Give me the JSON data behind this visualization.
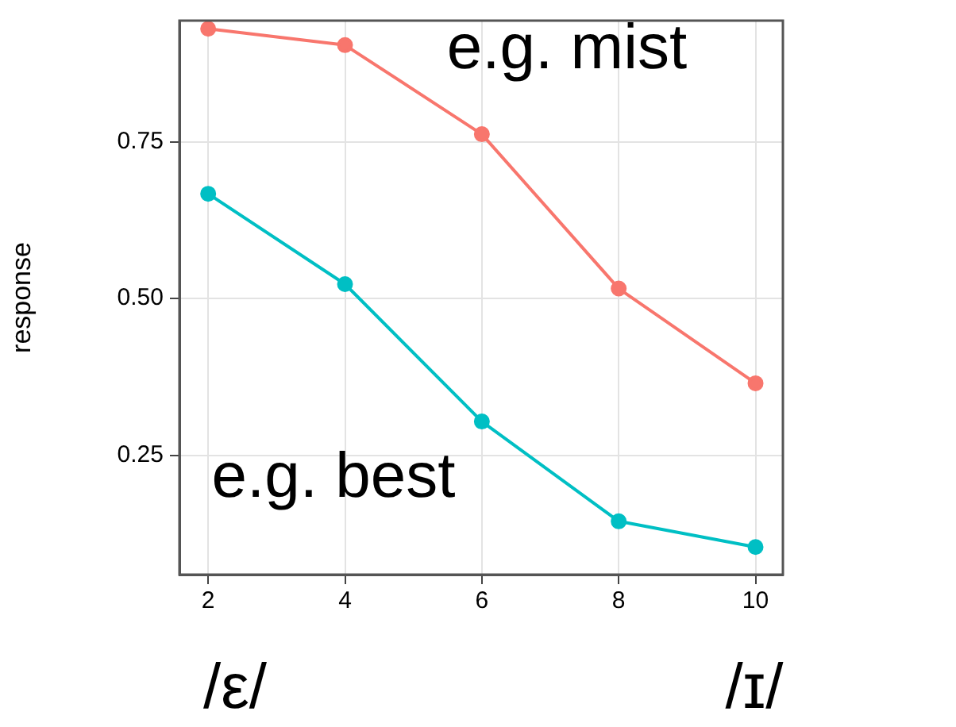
{
  "chart_data": {
    "type": "line",
    "ylabel": "response",
    "x": [
      2,
      4,
      6,
      8,
      10
    ],
    "series": [
      {
        "color": "#f8766d",
        "values": [
          0.93,
          0.904,
          0.762,
          0.516,
          0.365
        ]
      },
      {
        "color": "#00bfc4",
        "values": [
          0.667,
          0.523,
          0.304,
          0.145,
          0.104
        ]
      }
    ],
    "xlim": [
      1.58,
      10.4
    ],
    "ylim": [
      0.06,
      0.943
    ],
    "xticks": [
      2,
      4,
      6,
      8,
      10
    ],
    "yticks": [
      {
        "value": 0.25,
        "label": "0.25"
      },
      {
        "value": 0.5,
        "label": "0.50"
      },
      {
        "value": 0.75,
        "label": "0.75"
      }
    ],
    "grid": true,
    "legend": false,
    "marker": "circle",
    "line_style": "solid",
    "annotations": [
      "e.g. mist",
      "e.g. best",
      "/ε/",
      "/ɪ/"
    ]
  }
}
